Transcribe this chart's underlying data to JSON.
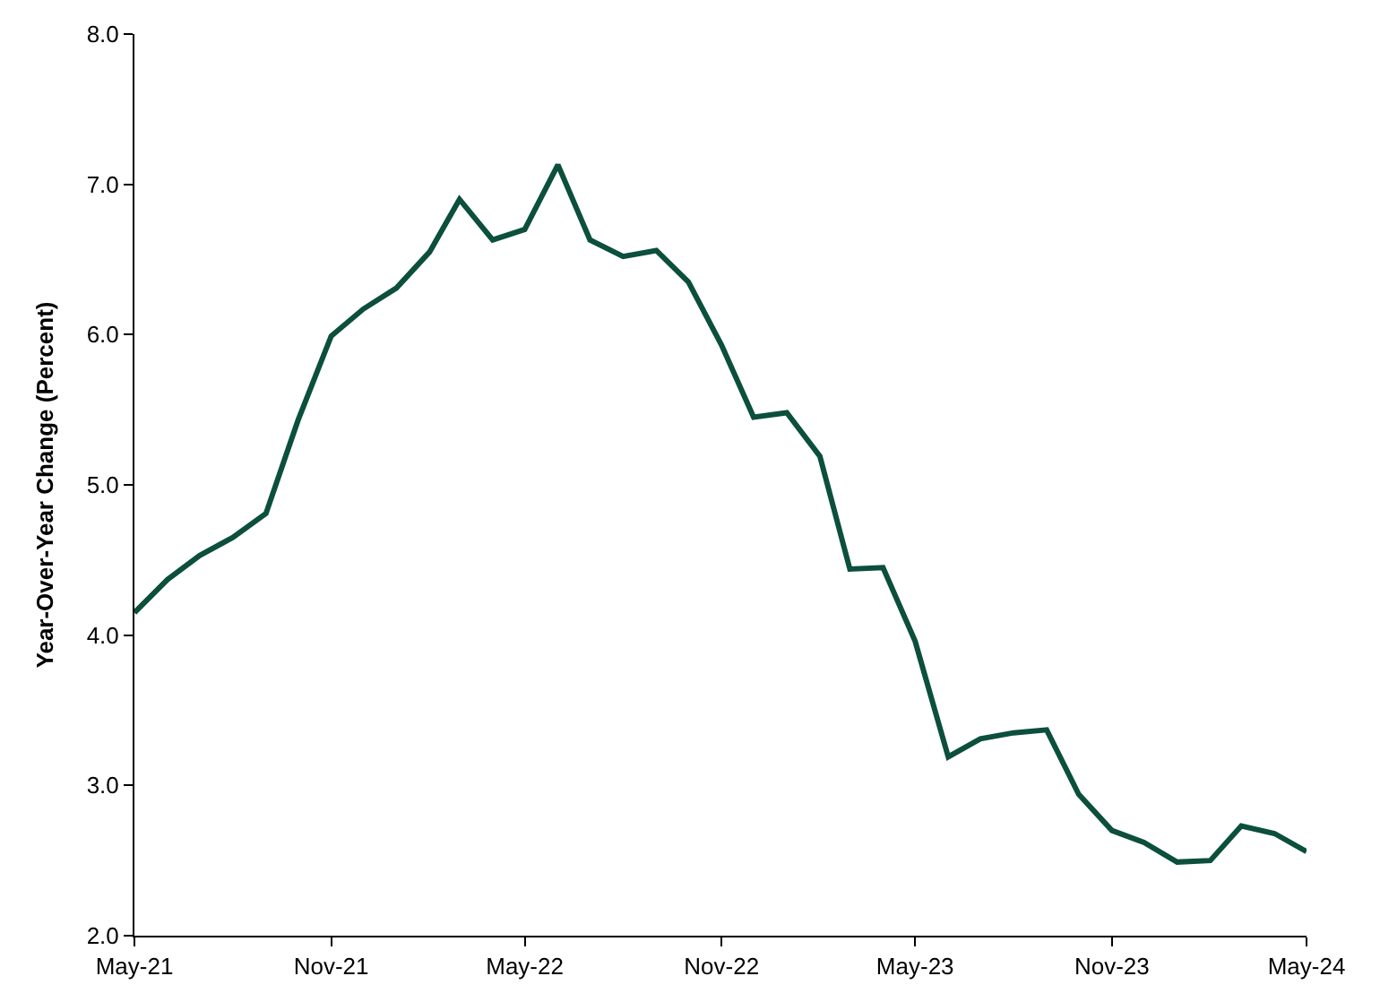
{
  "chart_data": {
    "type": "line",
    "ylabel": "Year-Over-Year Change (Percent)",
    "x": [
      "2021-05",
      "2021-06",
      "2021-07",
      "2021-08",
      "2021-09",
      "2021-10",
      "2021-11",
      "2021-12",
      "2022-01",
      "2022-02",
      "2022-03",
      "2022-04",
      "2022-05",
      "2022-06",
      "2022-07",
      "2022-08",
      "2022-09",
      "2022-10",
      "2022-11",
      "2022-12",
      "2023-01",
      "2023-02",
      "2023-03",
      "2023-04",
      "2023-05",
      "2023-06",
      "2023-07",
      "2023-08",
      "2023-09",
      "2023-10",
      "2023-11",
      "2023-12",
      "2024-01",
      "2024-02",
      "2024-03",
      "2024-04",
      "2024-05"
    ],
    "series": [
      {
        "color": "#0b4f3c",
        "values": [
          4.15,
          4.37,
          4.53,
          4.65,
          4.81,
          5.43,
          5.99,
          6.17,
          6.31,
          6.55,
          6.9,
          6.63,
          6.7,
          7.13,
          6.63,
          6.52,
          6.56,
          6.35,
          5.93,
          5.45,
          5.48,
          5.19,
          4.44,
          4.45,
          3.96,
          3.19,
          3.31,
          3.35,
          3.37,
          2.94,
          2.7,
          2.62,
          2.49,
          2.5,
          2.73,
          2.68,
          2.56
        ]
      }
    ],
    "xlim": [
      "2021-05",
      "2024-05"
    ],
    "xticks": [
      {
        "value": "2021-05",
        "label": "May-21"
      },
      {
        "value": "2021-11",
        "label": "Nov-21"
      },
      {
        "value": "2022-05",
        "label": "May-22"
      },
      {
        "value": "2022-11",
        "label": "Nov-22"
      },
      {
        "value": "2023-05",
        "label": "May-23"
      },
      {
        "value": "2023-11",
        "label": "Nov-23"
      },
      {
        "value": "2024-05",
        "label": "May-24"
      }
    ],
    "ylim": [
      2.0,
      8.0
    ],
    "yticks": [
      {
        "value": 2,
        "label": "2.0"
      },
      {
        "value": 3,
        "label": "3.0"
      },
      {
        "value": 4,
        "label": "4.0"
      },
      {
        "value": 5,
        "label": "5.0"
      },
      {
        "value": 6,
        "label": "6.0"
      },
      {
        "value": 7,
        "label": "7.0"
      },
      {
        "value": 8,
        "label": "8.0"
      }
    ],
    "legend": false,
    "marker": "none",
    "line_style": "solid"
  }
}
